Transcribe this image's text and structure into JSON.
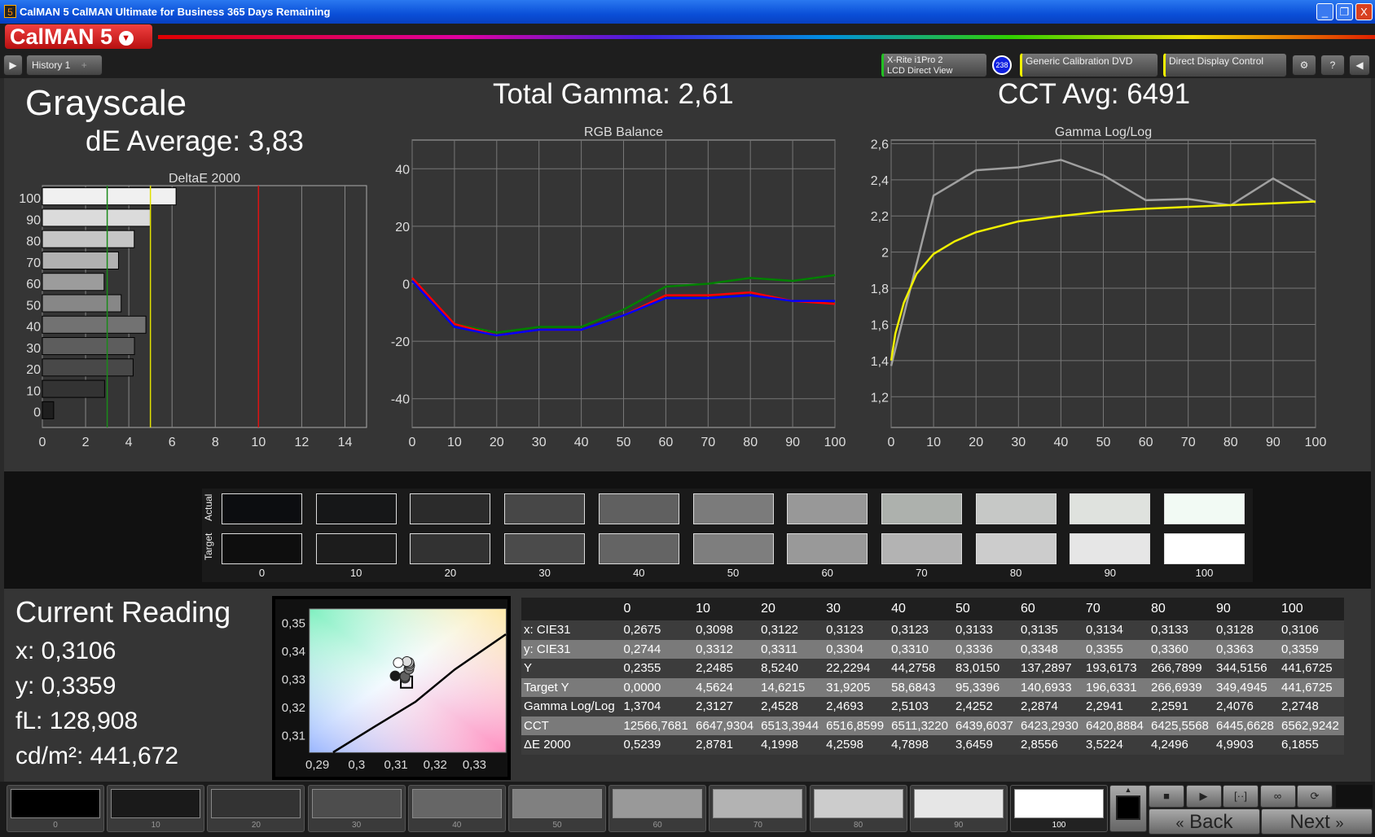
{
  "window": {
    "title": "CalMAN 5 CalMAN Ultimate for Business 365 Days Remaining",
    "app_icon": "5",
    "minimize": "_",
    "restore": "❐",
    "close": "X"
  },
  "logo": {
    "text": "CalMAN 5",
    "menu_icon": "chevron-down-icon"
  },
  "toolbar": {
    "tab": "History 1",
    "add_tab": "+",
    "meter_line1": "X-Rite i1Pro 2",
    "meter_line2": "LCD Direct View",
    "meter_badge": "238",
    "source": "Generic Calibration DVD",
    "display": "Direct Display Control",
    "settings_icon": "gear-icon",
    "help": "?",
    "colors": {
      "meter": "#22c022",
      "source": "#f0f000",
      "display": "#f0f000"
    }
  },
  "header": {
    "title": "Grayscale",
    "de_avg": "dE Average: 3,83",
    "gamma": "Total Gamma: 2,61",
    "cct": "CCT Avg: 6491"
  },
  "chart_data": [
    {
      "type": "bar",
      "title": "DeltaE 2000",
      "orientation": "horizontal",
      "categories": [
        "0",
        "10",
        "20",
        "30",
        "40",
        "50",
        "60",
        "70",
        "80",
        "90",
        "100"
      ],
      "values": [
        0.5239,
        2.8781,
        4.1998,
        4.2598,
        4.7898,
        3.6459,
        2.8556,
        3.5224,
        4.2496,
        4.9903,
        6.1855
      ],
      "xlim": [
        0,
        15
      ],
      "xticks": [
        "0",
        "2",
        "4",
        "6",
        "8",
        "10",
        "12",
        "14"
      ],
      "thresholds": [
        {
          "value": 3,
          "color": "#1a8a1a"
        },
        {
          "value": 5,
          "color": "#e0e000"
        },
        {
          "value": 10,
          "color": "#e01010"
        }
      ],
      "grid": true
    },
    {
      "type": "line",
      "title": "RGB Balance",
      "x": [
        0,
        10,
        20,
        30,
        40,
        50,
        60,
        70,
        80,
        90,
        100
      ],
      "ylim": [
        -50,
        50
      ],
      "yticks": [
        "40",
        "20",
        "0",
        "-20",
        "-40"
      ],
      "xticks": [
        "0",
        "10",
        "20",
        "30",
        "40",
        "50",
        "60",
        "70",
        "80",
        "90",
        "100"
      ],
      "grid": true,
      "series": [
        {
          "color": "#008000",
          "values": [
            1,
            -14,
            -17,
            -15,
            -15,
            -9,
            -1,
            0,
            2,
            1,
            3
          ]
        },
        {
          "color": "#ff0000",
          "values": [
            2,
            -14,
            -18,
            -16,
            -16,
            -11,
            -4,
            -4,
            -3,
            -6,
            -7
          ]
        },
        {
          "color": "#0000ff",
          "values": [
            1,
            -15,
            -18,
            -16,
            -16,
            -11,
            -5,
            -5,
            -4,
            -6,
            -6
          ]
        }
      ]
    },
    {
      "type": "line",
      "title": "Gamma Log/Log",
      "xlim": [
        0,
        100
      ],
      "ylim": [
        1.03,
        2.62
      ],
      "yticks": [
        "2,6",
        "2,4",
        "2,2",
        "2",
        "1,8",
        "1,6",
        "1,4",
        "1,2"
      ],
      "xticks": [
        "0",
        "10",
        "20",
        "30",
        "40",
        "50",
        "60",
        "70",
        "80",
        "90",
        "100"
      ],
      "grid": true,
      "series": [
        {
          "color": "#a0a0a0",
          "x": [
            0,
            10,
            20,
            30,
            40,
            50,
            60,
            70,
            80,
            90,
            100
          ],
          "values": [
            1.3704,
            2.3127,
            2.4528,
            2.4693,
            2.5103,
            2.4252,
            2.2874,
            2.2941,
            2.2591,
            2.4076,
            2.2748
          ]
        },
        {
          "color": "#f0f000",
          "x": [
            0,
            1,
            3,
            6,
            10,
            15,
            20,
            30,
            40,
            50,
            60,
            70,
            80,
            90,
            100
          ],
          "values": [
            1.4,
            1.55,
            1.72,
            1.88,
            1.99,
            2.06,
            2.11,
            2.17,
            2.2,
            2.225,
            2.24,
            2.25,
            2.26,
            2.27,
            2.28
          ]
        }
      ]
    },
    {
      "type": "scatter",
      "title": "CIE xy",
      "xlim": [
        0.288,
        0.338
      ],
      "ylim": [
        0.304,
        0.355
      ],
      "xticks": [
        "0,29",
        "0,3",
        "0,31",
        "0,32",
        "0,33"
      ],
      "yticks": [
        "0,35",
        "0,34",
        "0,33",
        "0,32",
        "0,31"
      ],
      "points": [
        {
          "x": 0.3098,
          "y": 0.3312,
          "color": "#1a1a1a"
        },
        {
          "x": 0.3122,
          "y": 0.3311,
          "color": "#333"
        },
        {
          "x": 0.3123,
          "y": 0.3304,
          "color": "#4a4a4a"
        },
        {
          "x": 0.3123,
          "y": 0.331,
          "color": "#606060"
        },
        {
          "x": 0.3133,
          "y": 0.3336,
          "color": "#7b7b7b"
        },
        {
          "x": 0.3135,
          "y": 0.3348,
          "color": "#999"
        },
        {
          "x": 0.3134,
          "y": 0.3355,
          "color": "#aaa"
        },
        {
          "x": 0.3133,
          "y": 0.336,
          "color": "#c0c0c0"
        },
        {
          "x": 0.3128,
          "y": 0.3363,
          "color": "#ddd"
        },
        {
          "x": 0.3106,
          "y": 0.3359,
          "color": "#fff"
        }
      ],
      "target": {
        "x": 0.3127,
        "y": 0.329
      },
      "locus": [
        [
          0.294,
          0.304
        ],
        [
          0.305,
          0.3135
        ],
        [
          0.315,
          0.322
        ],
        [
          0.325,
          0.3335
        ],
        [
          0.338,
          0.346
        ]
      ]
    }
  ],
  "swatches": {
    "actual_label": "Actual",
    "target_label": "Target",
    "levels": [
      "0",
      "10",
      "20",
      "30",
      "40",
      "50",
      "60",
      "70",
      "80",
      "90",
      "100"
    ],
    "actual": [
      "#0c0d10",
      "#161718",
      "#2b2b2b",
      "#474747",
      "#606060",
      "#7b7b7b",
      "#989898",
      "#adb1ad",
      "#c6c8c6",
      "#dfe2de",
      "#f2faf4"
    ],
    "target": [
      "#0e0e0e",
      "#1c1c1c",
      "#323232",
      "#4b4b4b",
      "#646464",
      "#7e7e7e",
      "#999999",
      "#b3b3b3",
      "#cccccc",
      "#e6e6e6",
      "#ffffff"
    ]
  },
  "reading": {
    "title": "Current Reading",
    "x": "x: 0,3106",
    "y": "y: 0,3359",
    "fl": "fL: 128,908",
    "cdm2": "cd/m²: 441,672"
  },
  "table": {
    "headers": [
      "",
      "0",
      "10",
      "20",
      "30",
      "40",
      "50",
      "60",
      "70",
      "80",
      "90",
      "100"
    ],
    "rows": [
      [
        "x: CIE31",
        "0,2675",
        "0,3098",
        "0,3122",
        "0,3123",
        "0,3123",
        "0,3133",
        "0,3135",
        "0,3134",
        "0,3133",
        "0,3128",
        "0,3106"
      ],
      [
        "y: CIE31",
        "0,2744",
        "0,3312",
        "0,3311",
        "0,3304",
        "0,3310",
        "0,3336",
        "0,3348",
        "0,3355",
        "0,3360",
        "0,3363",
        "0,3359"
      ],
      [
        "Y",
        "0,2355",
        "2,2485",
        "8,5240",
        "22,2294",
        "44,2758",
        "83,0150",
        "137,2897",
        "193,6173",
        "266,7899",
        "344,5156",
        "441,6725"
      ],
      [
        "Target Y",
        "0,0000",
        "4,5624",
        "14,6215",
        "31,9205",
        "58,6843",
        "95,3396",
        "140,6933",
        "196,6331",
        "266,6939",
        "349,4945",
        "441,6725"
      ],
      [
        "Gamma Log/Log",
        "1,3704",
        "2,3127",
        "2,4528",
        "2,4693",
        "2,5103",
        "2,4252",
        "2,2874",
        "2,2941",
        "2,2591",
        "2,4076",
        "2,2748"
      ],
      [
        "CCT",
        "12566,7681",
        "6647,9304",
        "6513,3944",
        "6516,8599",
        "6511,3220",
        "6439,6037",
        "6423,2930",
        "6420,8884",
        "6425,5568",
        "6445,6628",
        "6562,9242"
      ],
      [
        "ΔE 2000",
        "0,5239",
        "2,8781",
        "4,1998",
        "4,2598",
        "4,7898",
        "3,6459",
        "2,8556",
        "3,5224",
        "4,2496",
        "4,9903",
        "6,1855"
      ]
    ]
  },
  "bottombar": {
    "patches": [
      "0",
      "10",
      "20",
      "30",
      "40",
      "50",
      "60",
      "70",
      "80",
      "90",
      "100"
    ],
    "patch_colors": [
      "#000000",
      "#1a1a1a",
      "#333333",
      "#4d4d4d",
      "#666666",
      "#808080",
      "#999999",
      "#b3b3b3",
      "#cccccc",
      "#e6e6e6",
      "#ffffff"
    ],
    "selected": "100",
    "back": "Back",
    "next": "Next",
    "back_icon": "«",
    "next_icon": "»",
    "controls": [
      "stop-icon",
      "play-icon",
      "bracket-icon",
      "infinity-icon",
      "refresh-icon"
    ],
    "control_glyphs": [
      "■",
      "▶",
      "[··]",
      "∞",
      "⟳"
    ]
  }
}
